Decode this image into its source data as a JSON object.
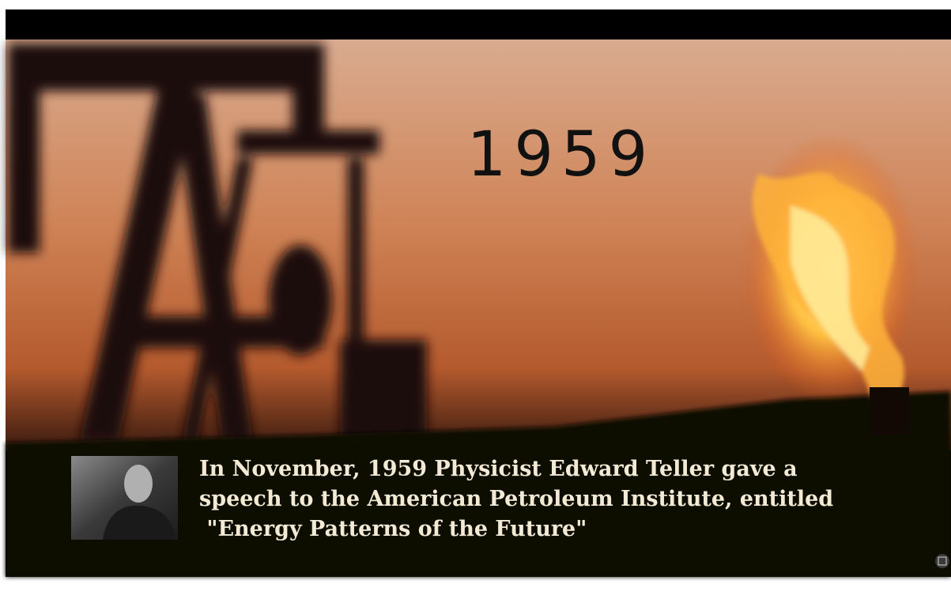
{
  "video": {
    "year_title": "1959",
    "caption": [
      "In November, 1959 Physicist Edward Teller gave a",
      "speech to the American Petroleum Institute, entitled",
      " \"Energy Patterns of the Future\""
    ]
  }
}
